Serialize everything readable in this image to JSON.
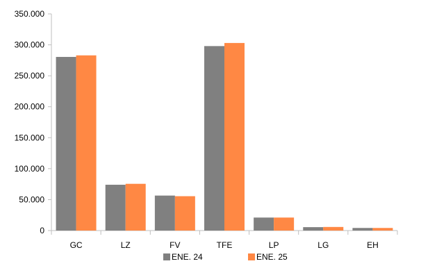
{
  "chart_data": {
    "type": "bar",
    "title": "",
    "xlabel": "",
    "ylabel": "",
    "categories": [
      "GC",
      "LZ",
      "FV",
      "TFE",
      "LP",
      "LG",
      "EH"
    ],
    "series": [
      {
        "name": "ENE. 24",
        "color": "#808080",
        "values": [
          280500,
          74000,
          56500,
          298000,
          21000,
          5500,
          4200
        ]
      },
      {
        "name": "ENE. 25",
        "color": "#ff8844",
        "values": [
          283000,
          75500,
          55500,
          303000,
          21000,
          5800,
          4200
        ]
      }
    ],
    "ylim": [
      0,
      350000
    ],
    "yticks": [
      0,
      50000,
      100000,
      150000,
      200000,
      250000,
      300000,
      350000
    ],
    "ytick_labels": [
      "0",
      "50.000",
      "100.000",
      "150.000",
      "200.000",
      "250.000",
      "300.000",
      "350.000"
    ],
    "grid": false,
    "legend": {
      "position": "bottom",
      "entries": [
        "ENE. 24",
        "ENE. 25"
      ]
    }
  }
}
